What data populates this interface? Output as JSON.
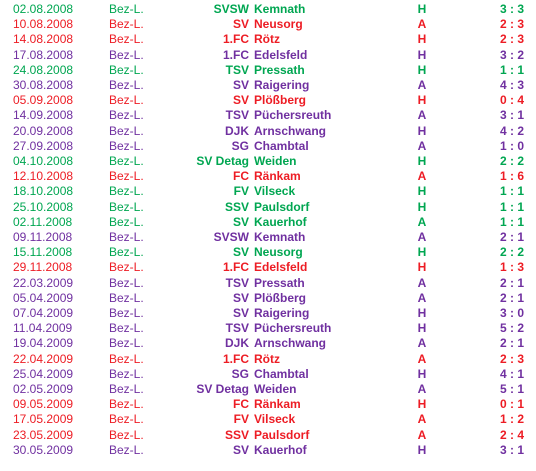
{
  "colors": {
    "green": "#00a651",
    "red": "#ed1c24",
    "blue": "#0093d9",
    "purple": "#7030a0"
  },
  "matches": [
    {
      "date": "02.08.2008",
      "league": "Bez-L.",
      "prefix": "SVSW",
      "team": "Kemnath",
      "venue": "H",
      "score": "3 : 3",
      "color": "win"
    },
    {
      "date": "10.08.2008",
      "league": "Bez-L.",
      "prefix": "SV",
      "team": "Neusorg",
      "venue": "A",
      "score": "2 : 3",
      "color": "loss"
    },
    {
      "date": "14.08.2008",
      "league": "Bez-L.",
      "prefix": "1.FC",
      "team": "Rötz",
      "venue": "H",
      "score": "2 : 3",
      "color": "loss"
    },
    {
      "date": "17.08.2008",
      "league": "Bez-L.",
      "prefix": "1.FC",
      "team": "Edelsfeld",
      "venue": "H",
      "score": "3 : 2",
      "color": "other"
    },
    {
      "date": "24.08.2008",
      "league": "Bez-L.",
      "prefix": "TSV",
      "team": "Pressath",
      "venue": "H",
      "score": "1 : 1",
      "color": "win"
    },
    {
      "date": "30.08.2008",
      "league": "Bez-L.",
      "prefix": "SV",
      "team": "Raigering",
      "venue": "A",
      "score": "4 : 3",
      "color": "other"
    },
    {
      "date": "05.09.2008",
      "league": "Bez-L.",
      "prefix": "SV",
      "team": "Plößberg",
      "venue": "H",
      "score": "0 : 4",
      "color": "loss"
    },
    {
      "date": "14.09.2008",
      "league": "Bez-L.",
      "prefix": "TSV",
      "team": "Püchersreuth",
      "venue": "A",
      "score": "3 : 1",
      "color": "other"
    },
    {
      "date": "20.09.2008",
      "league": "Bez-L.",
      "prefix": "DJK",
      "team": "Arnschwang",
      "venue": "H",
      "score": "4 : 2",
      "color": "other"
    },
    {
      "date": "27.09.2008",
      "league": "Bez-L.",
      "prefix": "SG",
      "team": "Chambtal",
      "venue": "A",
      "score": "1 : 0",
      "color": "other"
    },
    {
      "date": "04.10.2008",
      "league": "Bez-L.",
      "prefix": "SV Detag",
      "team": "Weiden",
      "venue": "H",
      "score": "2 : 2",
      "color": "win"
    },
    {
      "date": "12.10.2008",
      "league": "Bez-L.",
      "prefix": "FC",
      "team": "Ränkam",
      "venue": "A",
      "score": "1 : 6",
      "color": "loss"
    },
    {
      "date": "18.10.2008",
      "league": "Bez-L.",
      "prefix": "FV",
      "team": "Vilseck",
      "venue": "H",
      "score": "1 : 1",
      "color": "win"
    },
    {
      "date": "25.10.2008",
      "league": "Bez-L.",
      "prefix": "SSV",
      "team": "Paulsdorf",
      "venue": "H",
      "score": "1 : 1",
      "color": "win"
    },
    {
      "date": "02.11.2008",
      "league": "Bez-L.",
      "prefix": "SV",
      "team": "Kauerhof",
      "venue": "A",
      "score": "1 : 1",
      "color": "win"
    },
    {
      "date": "09.11.2008",
      "league": "Bez-L.",
      "prefix": "SVSW",
      "team": "Kemnath",
      "venue": "A",
      "score": "2 : 1",
      "color": "other"
    },
    {
      "date": "15.11.2008",
      "league": "Bez-L.",
      "prefix": "SV",
      "team": "Neusorg",
      "venue": "H",
      "score": "2 : 2",
      "color": "win"
    },
    {
      "date": "29.11.2008",
      "league": "Bez-L.",
      "prefix": "1.FC",
      "team": "Edelsfeld",
      "venue": "H",
      "score": "1 : 3",
      "color": "loss"
    },
    {
      "date": "22.03.2009",
      "league": "Bez-L.",
      "prefix": "TSV",
      "team": "Pressath",
      "venue": "A",
      "score": "2 : 1",
      "color": "other"
    },
    {
      "date": "05.04.2009",
      "league": "Bez-L.",
      "prefix": "SV",
      "team": "Plößberg",
      "venue": "A",
      "score": "2 : 1",
      "color": "other"
    },
    {
      "date": "07.04.2009",
      "league": "Bez-L.",
      "prefix": "SV",
      "team": "Raigering",
      "venue": "H",
      "score": "3 : 0",
      "color": "other"
    },
    {
      "date": "11.04.2009",
      "league": "Bez-L.",
      "prefix": "TSV",
      "team": "Püchersreuth",
      "venue": "H",
      "score": "5 : 2",
      "color": "other"
    },
    {
      "date": "19.04.2009",
      "league": "Bez-L.",
      "prefix": "DJK",
      "team": "Arnschwang",
      "venue": "A",
      "score": "2 : 1",
      "color": "other"
    },
    {
      "date": "22.04.2009",
      "league": "Bez-L.",
      "prefix": "1.FC",
      "team": "Rötz",
      "venue": "A",
      "score": "2 : 3",
      "color": "loss"
    },
    {
      "date": "25.04.2009",
      "league": "Bez-L.",
      "prefix": "SG",
      "team": "Chambtal",
      "venue": "H",
      "score": "4 : 1",
      "color": "other"
    },
    {
      "date": "02.05.2009",
      "league": "Bez-L.",
      "prefix": "SV Detag",
      "team": "Weiden",
      "venue": "A",
      "score": "5 : 1",
      "color": "other"
    },
    {
      "date": "09.05.2009",
      "league": "Bez-L.",
      "prefix": "FC",
      "team": "Ränkam",
      "venue": "H",
      "score": "0 : 1",
      "color": "loss"
    },
    {
      "date": "17.05.2009",
      "league": "Bez-L.",
      "prefix": "FV",
      "team": "Vilseck",
      "venue": "A",
      "score": "1 : 2",
      "color": "loss"
    },
    {
      "date": "23.05.2009",
      "league": "Bez-L.",
      "prefix": "SSV",
      "team": "Paulsdorf",
      "venue": "A",
      "score": "2 : 4",
      "color": "loss"
    },
    {
      "date": "30.05.2009",
      "league": "Bez-L.",
      "prefix": "SV",
      "team": "Kauerhof",
      "venue": "H",
      "score": "3 : 1",
      "color": "other"
    }
  ]
}
